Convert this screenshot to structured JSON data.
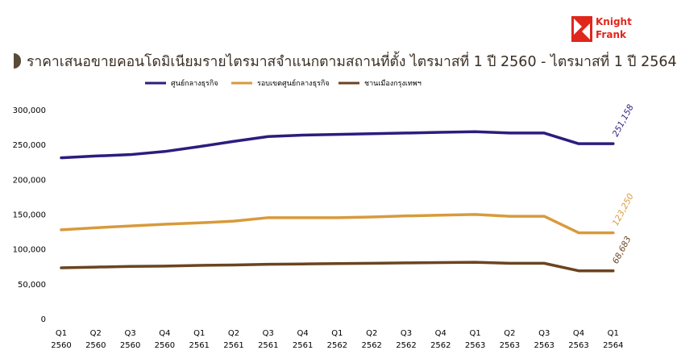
{
  "brand": {
    "line1": "Knight",
    "line2": "Frank",
    "color": "#e1261c"
  },
  "title": "ราคาเสนอขายคอนโดมิเนียมรายไตรมาสจำแนกตามสถานที่ตั้ง ไตรมาสที่ 1 ปี 2560 - ไตรมาสที่ 1 ปี 2564",
  "chart_data": {
    "type": "line",
    "categories": [
      [
        "Q1",
        "2560"
      ],
      [
        "Q2",
        "2560"
      ],
      [
        "Q3",
        "2560"
      ],
      [
        "Q4",
        "2560"
      ],
      [
        "Q1",
        "2561"
      ],
      [
        "Q2",
        "2561"
      ],
      [
        "Q3",
        "2561"
      ],
      [
        "Q4",
        "2561"
      ],
      [
        "Q1",
        "2562"
      ],
      [
        "Q2",
        "2562"
      ],
      [
        "Q3",
        "2562"
      ],
      [
        "Q4",
        "2562"
      ],
      [
        "Q1",
        "2563"
      ],
      [
        "Q2",
        "2563"
      ],
      [
        "Q3",
        "2563"
      ],
      [
        "Q4",
        "2563"
      ],
      [
        "Q1",
        "2564"
      ]
    ],
    "ylim": [
      0,
      300000
    ],
    "yticks": [
      "0",
      "50,000",
      "100,000",
      "150,000",
      "200,000",
      "250,000",
      "300,000"
    ],
    "grid": false,
    "legend_position": "top",
    "series": [
      {
        "name": "ศูนย์กลางธุรกิจ",
        "color": "#2b1d7e",
        "values": [
          231000,
          233500,
          235500,
          240000,
          247000,
          254500,
          261500,
          263500,
          264500,
          265500,
          266500,
          267500,
          268500,
          266500,
          266500,
          251158,
          251158
        ],
        "end_label": "251,158"
      },
      {
        "name": "รอบเขตศูนย์กลางธุรกิจ",
        "color": "#d89a3c",
        "values": [
          127500,
          130500,
          133000,
          135500,
          137500,
          140000,
          145000,
          145000,
          145000,
          146000,
          147500,
          148500,
          149500,
          147000,
          147000,
          123250,
          123250
        ],
        "end_label": "123,250"
      },
      {
        "name": "ชานเมืองกรุงเทพฯ",
        "color": "#6b4420",
        "values": [
          73000,
          74000,
          75000,
          75500,
          76500,
          77000,
          78000,
          78500,
          79000,
          79500,
          80000,
          80500,
          81000,
          79500,
          79500,
          68683,
          68683
        ],
        "end_label": "68,683"
      }
    ]
  }
}
